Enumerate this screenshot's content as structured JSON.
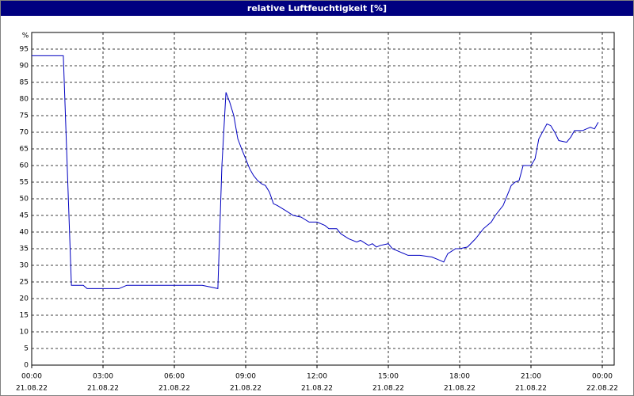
{
  "chart_data": {
    "type": "line",
    "title": "relative Luftfeuchtigkeit [%]",
    "y_label": "%",
    "xlim": [
      0,
      24.5
    ],
    "ylim": [
      0,
      100
    ],
    "yticks": [
      0,
      5,
      10,
      15,
      20,
      25,
      30,
      35,
      40,
      45,
      50,
      55,
      60,
      65,
      70,
      75,
      80,
      85,
      90,
      95
    ],
    "xticks": [
      {
        "value": 0,
        "label": "00:00",
        "date": "21.08.22"
      },
      {
        "value": 3,
        "label": "03:00",
        "date": "21.08.22"
      },
      {
        "value": 6,
        "label": "06:00",
        "date": "21.08.22"
      },
      {
        "value": 9,
        "label": "09:00",
        "date": "21.08.22"
      },
      {
        "value": 12,
        "label": "12:00",
        "date": "21.08.22"
      },
      {
        "value": 15,
        "label": "15:00",
        "date": "21.08.22"
      },
      {
        "value": 18,
        "label": "18:00",
        "date": "21.08.22"
      },
      {
        "value": 21,
        "label": "21:00",
        "date": "21.08.22"
      },
      {
        "value": 24,
        "label": "00:00",
        "date": "22.08.22"
      }
    ],
    "grid": true,
    "series": [
      {
        "color": "#0000c0",
        "x": [
          0,
          1.33,
          1.67,
          2.17,
          2.33,
          3.67,
          4.0,
          7.17,
          7.5,
          7.83,
          8.0,
          8.17,
          8.33,
          8.5,
          8.67,
          8.83,
          9.0,
          9.17,
          9.33,
          9.5,
          9.67,
          9.83,
          10.0,
          10.17,
          10.33,
          10.67,
          11.0,
          11.33,
          11.67,
          12.0,
          12.33,
          12.5,
          12.83,
          13.0,
          13.33,
          13.67,
          13.83,
          14.17,
          14.33,
          14.5,
          14.67,
          15.0,
          15.17,
          15.5,
          15.83,
          16.33,
          16.83,
          17.17,
          17.33,
          17.5,
          17.83,
          18.0,
          18.33,
          18.67,
          19.0,
          19.33,
          19.5,
          19.83,
          20.17,
          20.33,
          20.5,
          20.67,
          21.0,
          21.17,
          21.33,
          21.67,
          21.83,
          22.0,
          22.17,
          22.5,
          22.67,
          22.83,
          23.17,
          23.33,
          23.5,
          23.67,
          23.83
        ],
        "values": [
          93,
          93,
          24,
          24,
          23,
          23,
          24,
          24,
          23.5,
          23,
          60,
          82,
          79,
          75,
          68,
          65,
          62,
          59,
          57,
          55.5,
          54.5,
          54,
          52,
          48.5,
          48,
          46.5,
          45,
          44.5,
          43,
          43,
          42,
          41,
          41,
          39.5,
          38,
          37,
          37.5,
          36,
          36.5,
          35.5,
          36,
          36.5,
          35,
          34,
          33,
          33,
          32.5,
          31.5,
          31,
          33.5,
          35,
          35,
          35.5,
          38,
          41,
          43,
          45,
          48,
          54,
          55,
          55.5,
          60,
          60,
          62,
          68,
          72.5,
          72,
          70,
          67.5,
          67,
          68.5,
          70.5,
          70.5,
          71,
          71.5,
          71,
          73
        ]
      }
    ]
  }
}
